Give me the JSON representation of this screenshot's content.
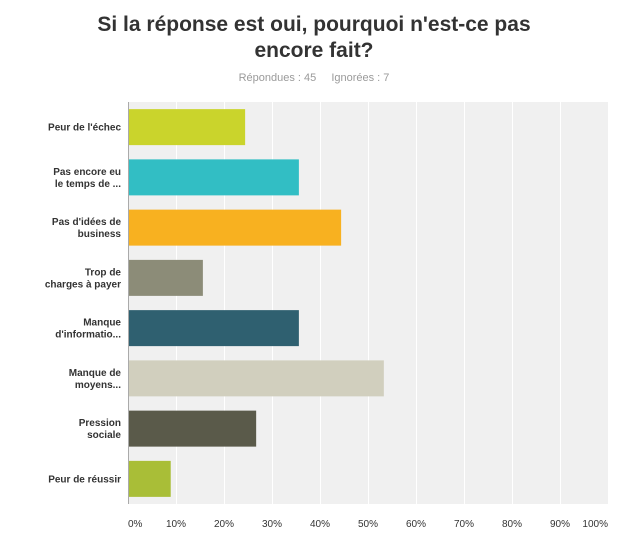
{
  "chart_data": {
    "type": "bar",
    "orientation": "horizontal",
    "title_lines": [
      "Si la réponse est oui, pourquoi n'est-ce pas",
      "encore fait?"
    ],
    "stats": {
      "answered": "Répondues : 45",
      "ignored": "Ignorées : 7"
    },
    "categories": [
      [
        "Peur de l'échec"
      ],
      [
        "Pas encore eu",
        "le temps de ..."
      ],
      [
        "Pas d'idées de",
        "business"
      ],
      [
        "Trop de",
        "charges à payer"
      ],
      [
        "Manque",
        "d'informatio..."
      ],
      [
        "Manque de",
        "moyens..."
      ],
      [
        "Pression",
        "sociale"
      ],
      [
        "Peur de réussir"
      ]
    ],
    "values": [
      24.4,
      35.6,
      44.4,
      15.6,
      35.6,
      53.3,
      26.7,
      8.9
    ],
    "colors": [
      "#cad42c",
      "#32bec4",
      "#f8b120",
      "#8c8c78",
      "#2f6070",
      "#d1cfbe",
      "#5a5a4a",
      "#a9be37"
    ],
    "x_ticks": [
      "0%",
      "10%",
      "20%",
      "30%",
      "40%",
      "50%",
      "60%",
      "70%",
      "80%",
      "90%",
      "100%"
    ],
    "xlim": [
      0,
      100
    ],
    "grid": true
  }
}
